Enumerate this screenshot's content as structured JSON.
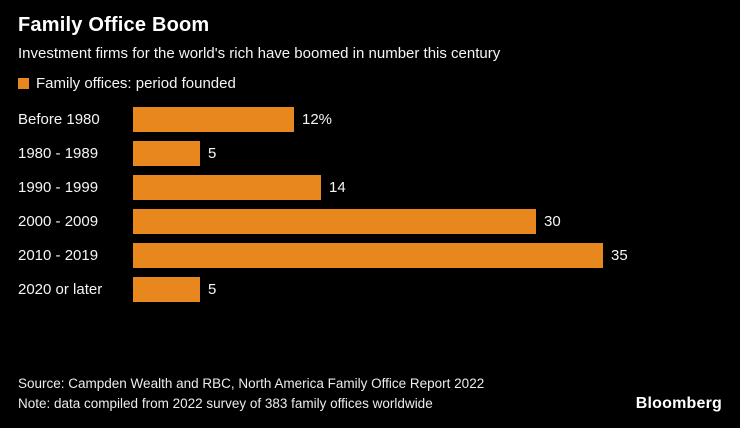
{
  "header": {
    "title": "Family Office Boom",
    "subtitle": "Investment firms for the world's rich have boomed in number this century"
  },
  "legend": {
    "label": "Family offices: period founded"
  },
  "chart_data": {
    "type": "bar",
    "orientation": "horizontal",
    "title": "Family Office Boom",
    "subtitle": "Investment firms for the world's rich have boomed in number this century",
    "series_name": "Family offices: period founded",
    "categories": [
      "Before 1980",
      "1980 - 1989",
      "1990 - 1999",
      "2000 - 2009",
      "2010 - 2019",
      "2020 or later"
    ],
    "values": [
      12,
      5,
      14,
      30,
      35,
      5
    ],
    "value_labels": [
      "12%",
      "5",
      "14",
      "30",
      "35",
      "5"
    ],
    "unit": "%",
    "xlim": [
      0,
      35
    ],
    "grid": false,
    "legend_position": "top",
    "bar_color": "#E8871D"
  },
  "footer": {
    "source": "Source: Campden Wealth and RBC, North America Family Office Report 2022",
    "note": "Note: data compiled from 2022 survey of 383 family offices worldwide",
    "brand": "Bloomberg"
  },
  "colors": {
    "background": "#000000",
    "text": "#FFFFFF",
    "accent": "#E8871D"
  }
}
